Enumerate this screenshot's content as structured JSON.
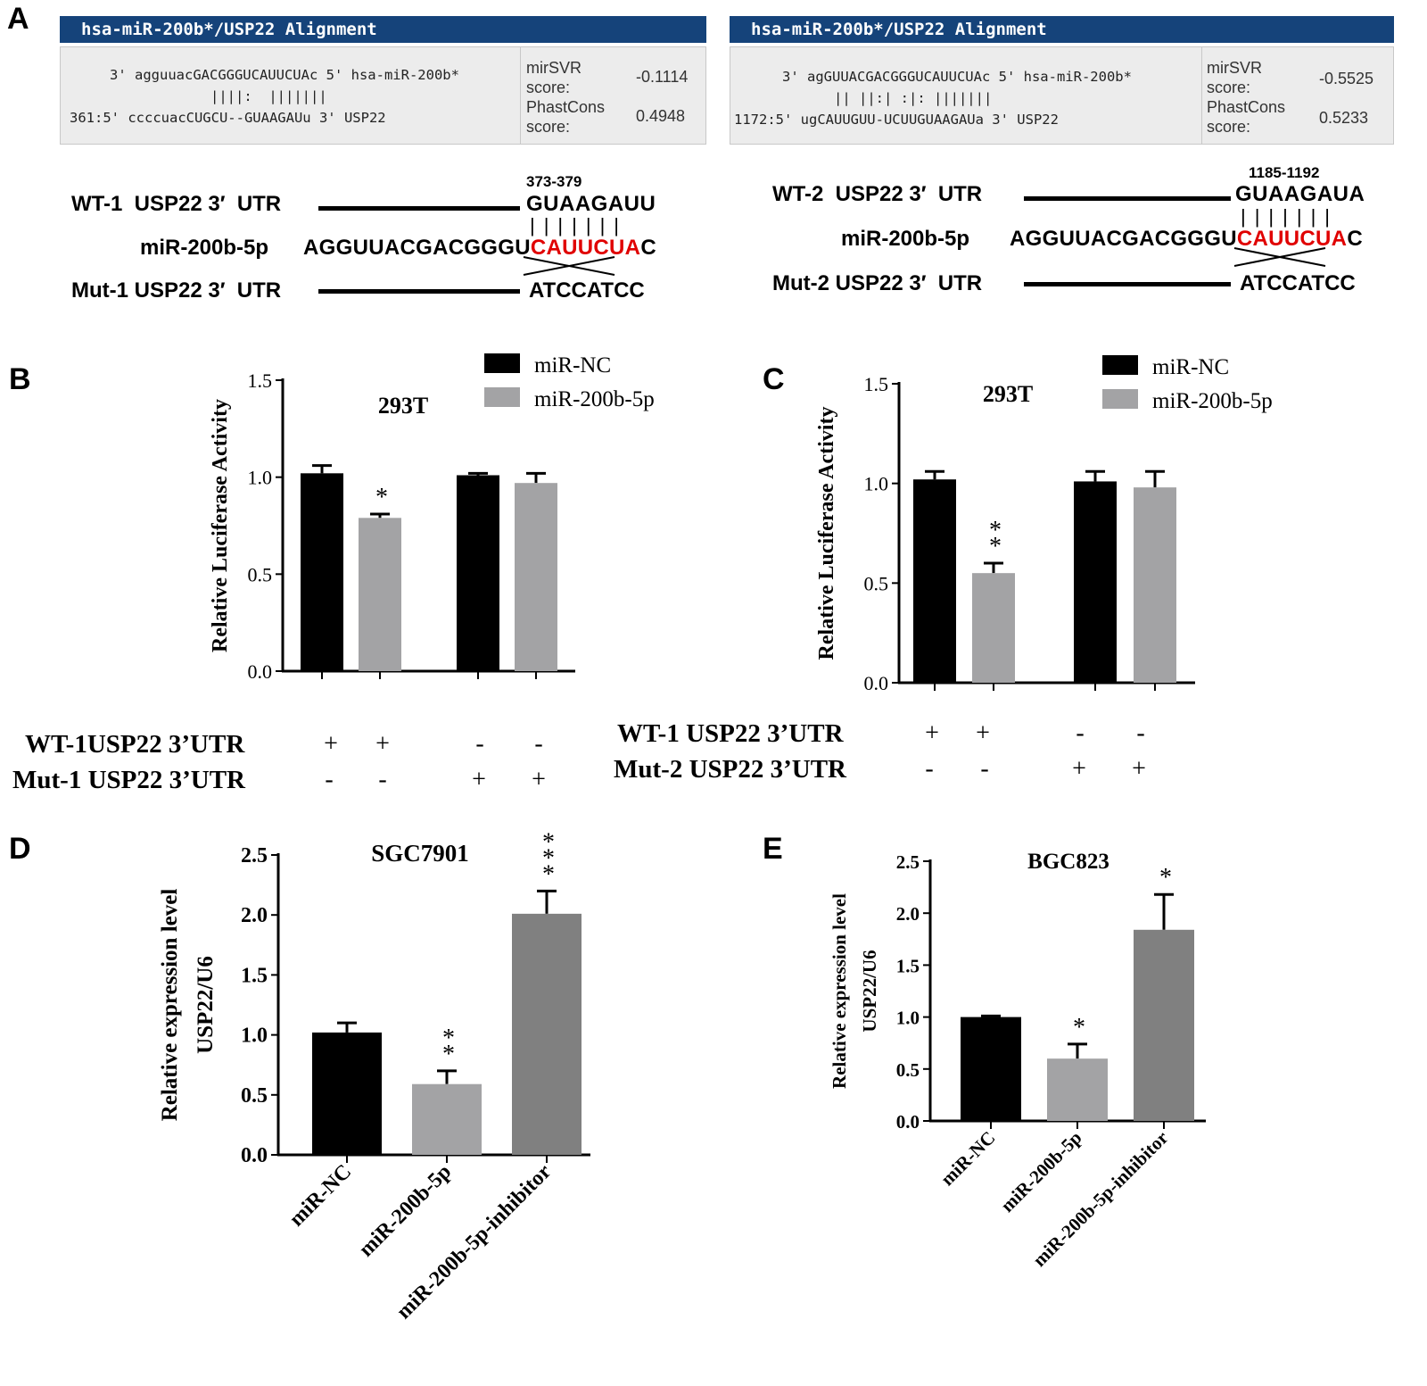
{
  "panels": {
    "A": "A",
    "B": "B",
    "C": "C",
    "D": "D",
    "E": "E"
  },
  "alignment_left": {
    "title": "hsa-miR-200b*/USP22 Alignment",
    "line1": "3' agguuacGACGGGUCAUUCUAc 5' hsa-miR-200b*",
    "line2": "||||:  |||||||",
    "line3": "361:5' ccccuacCUGCU--GUAAGAUu 3' USP22",
    "svr_label": "mirSVR\nscore:",
    "svr_value": "-0.1114",
    "phast_label": "PhastCons\nscore:",
    "phast_value": "0.4948"
  },
  "alignment_right": {
    "title": "hsa-miR-200b*/USP22 Alignment",
    "line1": "3' agGUUACGACGGGUCAUUCUAc 5' hsa-miR-200b*",
    "line2": "|| ||:| :|: |||||||",
    "line3": "1172:5' ugCAUUGUU-UCUUGUAAGAUa 3' USP22",
    "svr_label": "mirSVR\nscore:",
    "svr_value": "-0.5525",
    "phast_label": "PhastCons\nscore:",
    "phast_value": "0.5233"
  },
  "site_left": {
    "position": "373-379",
    "wt_label": "WT-1  USP22 3′  UTR",
    "wt_seq": "GUAAGAUU",
    "pairs": "|||||||",
    "mir_label": "miR-200b-5p",
    "mir_seq_a": "AGGUUACGACGGGU",
    "mir_seq_red": "CAUUCUA",
    "mir_seq_c": "C",
    "mut_label": "Mut-1 USP22 3′  UTR",
    "mut_seq": "ATCCATCC"
  },
  "site_right": {
    "position": "1185-1192",
    "wt_label": "WT-2  USP22 3′  UTR",
    "wt_seq": "GUAAGAUA",
    "pairs": "|||||||",
    "mir_label": "miR-200b-5p",
    "mir_seq_a": "AGGUUACGACGGGU",
    "mir_seq_red": "CAUUCUA",
    "mir_seq_c": "C",
    "mut_label": "Mut-2 USP22 3′  UTR",
    "mut_seq": "ATCCATCC"
  },
  "table_B": {
    "row1_label": "WT-1USP22 3’UTR",
    "row1": [
      "+",
      "+",
      "-",
      "-"
    ],
    "row2_label": "Mut-1 USP22 3’UTR",
    "row2": [
      "-",
      "-",
      "+",
      "+"
    ]
  },
  "table_C": {
    "row1_label": "WT-1 USP22 3’UTR",
    "row1": [
      "+",
      "+",
      "-",
      "-"
    ],
    "row2_label": "Mut-2 USP22 3’UTR",
    "row2": [
      "-",
      "-",
      "+",
      "+"
    ]
  },
  "chart_data": [
    {
      "panel": "B",
      "type": "bar",
      "title": "293T",
      "ylabel": "Relative Luciferase Activity",
      "ylim": [
        0,
        1.5
      ],
      "yticks": [
        "0.0",
        "0.5",
        "1.0",
        "1.5"
      ],
      "series": [
        {
          "name": "miR-NC",
          "color": "#000000"
        },
        {
          "name": "miR-200b-5p",
          "color": "#a3a3a5"
        }
      ],
      "bars": [
        {
          "series": "miR-NC",
          "value": 1.02,
          "err": 0.04,
          "sig": ""
        },
        {
          "series": "miR-200b-5p",
          "value": 0.79,
          "err": 0.02,
          "sig": "*"
        },
        {
          "series": "miR-NC",
          "value": 1.01,
          "err": 0.01,
          "sig": ""
        },
        {
          "series": "miR-200b-5p",
          "value": 0.97,
          "err": 0.05,
          "sig": ""
        }
      ],
      "legend": "top-right"
    },
    {
      "panel": "C",
      "type": "bar",
      "title": "293T",
      "ylabel": "Relative Luciferase Activity",
      "ylim": [
        0,
        1.5
      ],
      "yticks": [
        "0.0",
        "0.5",
        "1.0",
        "1.5"
      ],
      "series": [
        {
          "name": "miR-NC",
          "color": "#000000"
        },
        {
          "name": "miR-200b-5p",
          "color": "#a3a3a5"
        }
      ],
      "bars": [
        {
          "series": "miR-NC",
          "value": 1.02,
          "err": 0.04,
          "sig": ""
        },
        {
          "series": "miR-200b-5p",
          "value": 0.55,
          "err": 0.05,
          "sig": "**"
        },
        {
          "series": "miR-NC",
          "value": 1.01,
          "err": 0.05,
          "sig": ""
        },
        {
          "series": "miR-200b-5p",
          "value": 0.98,
          "err": 0.08,
          "sig": ""
        }
      ],
      "legend": "top-right"
    },
    {
      "panel": "D",
      "type": "bar",
      "title": "SGC7901",
      "ylabel": "Relative expression level",
      "ylabel2": "USP22/U6",
      "ylim": [
        0,
        2.5
      ],
      "yticks": [
        "0.0",
        "0.5",
        "1.0",
        "1.5",
        "2.0",
        "2.5"
      ],
      "categories": [
        "miR-NC",
        "miR-200b-5p",
        "miR-200b-5p-inhibitor"
      ],
      "bars": [
        {
          "value": 1.02,
          "err": 0.08,
          "sig": "",
          "color": "#000000"
        },
        {
          "value": 0.59,
          "err": 0.11,
          "sig": "**",
          "color": "#a3a3a5"
        },
        {
          "value": 2.01,
          "err": 0.19,
          "sig": "***",
          "color": "#808080"
        }
      ]
    },
    {
      "panel": "E",
      "type": "bar",
      "title": "BGC823",
      "ylabel": "Relative expression level",
      "ylabel2": "USP22/U6",
      "ylim": [
        0,
        2.5
      ],
      "yticks": [
        "0.0",
        "0.5",
        "1.0",
        "1.5",
        "2.0",
        "2.5"
      ],
      "categories": [
        "miR-NC",
        "miR-200b-5p",
        "miR-200b-5p-inhibitor"
      ],
      "bars": [
        {
          "value": 1.0,
          "err": 0.01,
          "sig": "",
          "color": "#000000"
        },
        {
          "value": 0.6,
          "err": 0.14,
          "sig": "*",
          "color": "#a3a3a5"
        },
        {
          "value": 1.84,
          "err": 0.34,
          "sig": "*",
          "color": "#808080"
        }
      ]
    }
  ]
}
